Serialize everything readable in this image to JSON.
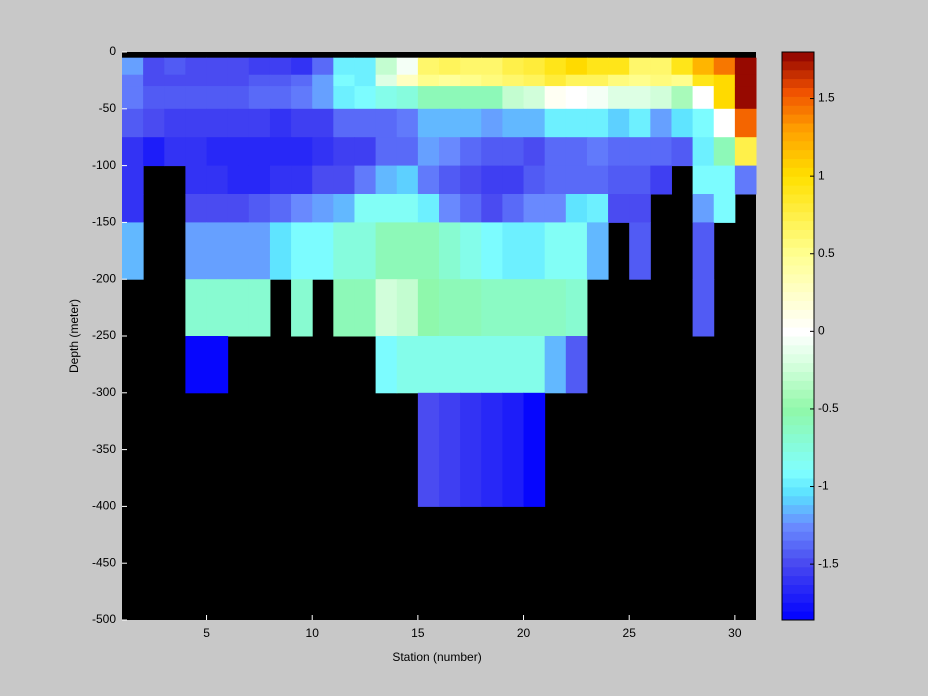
{
  "chart_data": {
    "type": "heatmap",
    "xlabel": "Station (number)",
    "ylabel": "Depth (meter)",
    "x": [
      1,
      2,
      3,
      4,
      5,
      6,
      7,
      8,
      9,
      10,
      11,
      12,
      13,
      14,
      15,
      16,
      17,
      18,
      19,
      20,
      21,
      22,
      23,
      24,
      25,
      26,
      27,
      28,
      29,
      30,
      31
    ],
    "y": [
      0,
      -5,
      -20,
      -30,
      -50,
      -75,
      -100,
      -125,
      -150,
      -200,
      -250,
      -300,
      -400,
      -500
    ],
    "xlim": [
      1,
      31
    ],
    "ylim": [
      -500,
      0
    ],
    "xticks": [
      5,
      10,
      15,
      20,
      25,
      30
    ],
    "yticks": [
      0,
      -50,
      -100,
      -150,
      -200,
      -250,
      -300,
      -350,
      -400,
      -450,
      -500
    ],
    "clim": [
      -1.86,
      1.8
    ],
    "cticks": [
      1.5,
      1,
      0.5,
      0,
      -0.5,
      -1,
      -1.5
    ],
    "colormap": [
      [
        -1.86,
        "#0000ff"
      ],
      [
        -1.5,
        "#4848f0"
      ],
      [
        -1.25,
        "#6a8cff"
      ],
      [
        -1.05,
        "#5ae0ff"
      ],
      [
        -0.9,
        "#80ffff"
      ],
      [
        -0.5,
        "#90f8a8"
      ],
      [
        -0.2,
        "#d8ffe0"
      ],
      [
        0,
        "#ffffff"
      ],
      [
        0.5,
        "#ffff90"
      ],
      [
        1.0,
        "#ffe000"
      ],
      [
        1.3,
        "#ffa000"
      ],
      [
        1.55,
        "#f05000"
      ],
      [
        1.8,
        "#8b0000"
      ]
    ],
    "colormap_levels": 64,
    "background": "#000000",
    "values": [
      [
        null,
        null,
        null,
        null,
        null,
        null,
        null,
        null,
        null,
        null,
        null,
        null,
        null,
        null,
        null,
        null,
        null,
        null,
        null,
        null,
        null,
        null,
        null,
        null,
        null,
        null,
        null,
        null,
        null,
        null
      ],
      [
        -1.2,
        -1.5,
        -1.45,
        -1.5,
        -1.5,
        -1.5,
        -1.55,
        -1.55,
        -1.6,
        -1.4,
        -0.95,
        -0.95,
        -0.3,
        -0.05,
        0.6,
        0.7,
        0.6,
        0.65,
        0.75,
        0.8,
        0.9,
        1.0,
        0.9,
        0.9,
        0.6,
        0.6,
        0.9,
        1.2,
        1.4,
        1.75
      ],
      [
        -1.3,
        -1.5,
        -1.5,
        -1.5,
        -1.5,
        -1.5,
        -1.45,
        -1.45,
        -1.35,
        -1.2,
        -0.9,
        -0.95,
        -0.2,
        0.3,
        0.5,
        0.45,
        0.5,
        0.55,
        0.6,
        0.7,
        0.8,
        0.7,
        0.7,
        0.55,
        0.5,
        0.55,
        0.5,
        0.9,
        1.0,
        1.75
      ],
      [
        -1.3,
        -1.45,
        -1.45,
        -1.45,
        -1.45,
        -1.45,
        -1.4,
        -1.4,
        -1.3,
        -1.2,
        -0.95,
        -0.9,
        -0.8,
        -0.75,
        -0.6,
        -0.55,
        -0.6,
        -0.6,
        -0.3,
        -0.25,
        0.05,
        0.0,
        -0.05,
        -0.15,
        -0.2,
        -0.25,
        -0.4,
        0.0,
        1.0,
        1.75
      ],
      [
        -1.45,
        -1.5,
        -1.55,
        -1.55,
        -1.55,
        -1.55,
        -1.55,
        -1.6,
        -1.55,
        -1.55,
        -1.4,
        -1.4,
        -1.35,
        -1.3,
        -1.15,
        -1.15,
        -1.15,
        -1.2,
        -1.15,
        -1.15,
        -0.95,
        -0.95,
        -0.95,
        -1.1,
        -1.0,
        -1.2,
        -1.05,
        -0.9,
        0.0,
        1.5
      ],
      [
        -1.6,
        -1.7,
        -1.6,
        -1.6,
        -1.65,
        -1.65,
        -1.65,
        -1.65,
        -1.65,
        -1.6,
        -1.55,
        -1.55,
        -1.4,
        -1.35,
        -1.2,
        -1.25,
        -1.35,
        -1.45,
        -1.45,
        -1.5,
        -1.35,
        -1.35,
        -1.3,
        -1.4,
        -1.4,
        -1.4,
        -1.45,
        -0.95,
        -0.55,
        0.75
      ],
      [
        -1.6,
        null,
        null,
        -1.6,
        -1.6,
        -1.65,
        -1.65,
        -1.6,
        -1.6,
        -1.5,
        -1.5,
        -1.3,
        -1.15,
        -1.1,
        -1.3,
        -1.45,
        -1.5,
        -1.55,
        -1.55,
        -1.45,
        -1.4,
        -1.35,
        -1.35,
        -1.45,
        -1.45,
        -1.55,
        null,
        -0.9,
        -0.9,
        -1.3
      ],
      [
        -1.6,
        null,
        null,
        -1.5,
        -1.5,
        -1.5,
        -1.45,
        -1.4,
        -1.25,
        -1.2,
        -1.15,
        -0.85,
        -0.85,
        -0.85,
        -1.0,
        -1.25,
        -1.35,
        -1.5,
        -1.35,
        -1.25,
        -1.25,
        -1.05,
        -1.0,
        -1.5,
        -1.5,
        null,
        null,
        -1.2,
        -0.9,
        null
      ],
      [
        -1.15,
        null,
        null,
        -1.2,
        -1.2,
        -1.2,
        -1.2,
        -1.05,
        -0.9,
        -0.9,
        -0.75,
        -0.75,
        -0.55,
        -0.55,
        -0.6,
        -0.7,
        -0.8,
        -0.9,
        -1.0,
        -0.95,
        -0.85,
        -0.85,
        -1.15,
        null,
        -1.45,
        null,
        null,
        -1.45,
        null,
        null
      ],
      [
        null,
        null,
        null,
        -0.7,
        -0.7,
        -0.7,
        -0.7,
        null,
        -0.7,
        null,
        -0.55,
        -0.55,
        -0.25,
        -0.3,
        -0.5,
        -0.55,
        -0.6,
        -0.65,
        -0.65,
        -0.65,
        -0.65,
        -0.7,
        null,
        null,
        null,
        null,
        null,
        -1.45,
        null,
        null
      ],
      [
        null,
        null,
        null,
        -1.85,
        -1.85,
        null,
        null,
        null,
        null,
        null,
        null,
        null,
        -0.9,
        -0.8,
        -0.8,
        -0.8,
        -0.8,
        -0.8,
        -0.8,
        -0.8,
        -1.15,
        -1.45,
        null,
        null,
        null,
        null,
        null,
        null,
        null,
        null
      ],
      [
        null,
        null,
        null,
        null,
        null,
        null,
        null,
        null,
        null,
        null,
        null,
        null,
        null,
        null,
        -1.5,
        -1.55,
        -1.6,
        -1.65,
        -1.7,
        -1.85,
        null,
        null,
        null,
        null,
        null,
        null,
        null,
        null,
        null,
        null
      ],
      [
        null,
        null,
        null,
        null,
        null,
        null,
        null,
        null,
        null,
        null,
        null,
        null,
        null,
        null,
        null,
        null,
        null,
        null,
        null,
        null,
        null,
        null,
        null,
        null,
        null,
        null,
        null,
        null,
        null,
        null
      ]
    ]
  }
}
